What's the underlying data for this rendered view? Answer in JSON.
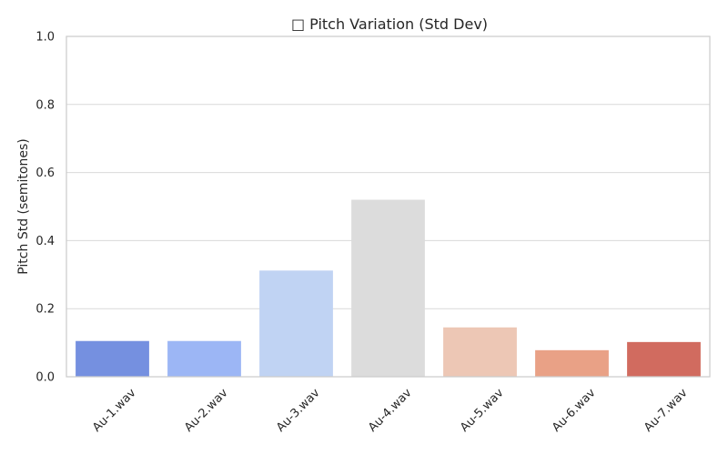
{
  "chart_data": {
    "type": "bar",
    "title": "□ Pitch Variation (Std Dev)",
    "ylabel": "Pitch Std (semitones)",
    "xlabel": "",
    "categories": [
      "Au-1.wav",
      "Au-2.wav",
      "Au-3.wav",
      "Au-4.wav",
      "Au-5.wav",
      "Au-6.wav",
      "Au-7.wav"
    ],
    "values": [
      0.105,
      0.105,
      0.312,
      0.52,
      0.145,
      0.078,
      0.102
    ],
    "colors": [
      "#7590e0",
      "#9cb6f5",
      "#c0d3f3",
      "#dcdcdc",
      "#edc7b5",
      "#e9a186",
      "#d16b5f"
    ],
    "ylim": [
      0,
      1.0
    ],
    "yticks": [
      0.0,
      0.2,
      0.4,
      0.6,
      0.8,
      1.0
    ],
    "grid": true,
    "legend": "none"
  }
}
